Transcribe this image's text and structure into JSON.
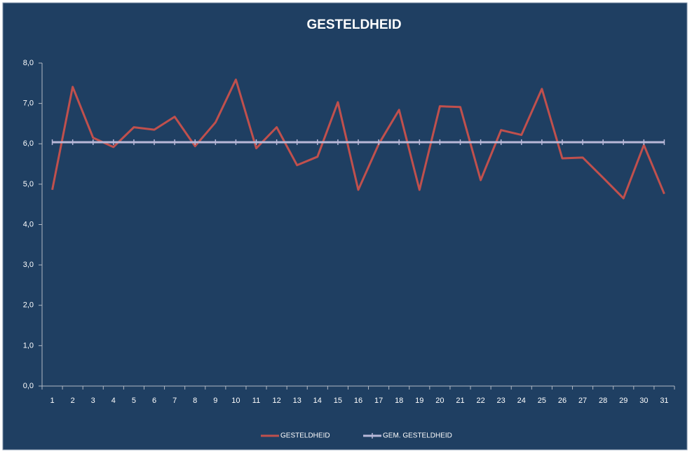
{
  "chart_data": {
    "type": "line",
    "title": "GESTELDHEID",
    "categories": [
      "1",
      "2",
      "3",
      "4",
      "5",
      "6",
      "7",
      "8",
      "9",
      "10",
      "11",
      "12",
      "13",
      "14",
      "15",
      "16",
      "17",
      "18",
      "19",
      "20",
      "21",
      "22",
      "23",
      "24",
      "25",
      "26",
      "27",
      "28",
      "29",
      "30",
      "31"
    ],
    "series": [
      {
        "name": "GESTELDHEID",
        "color": "#c0504d",
        "values": [
          4.86,
          7.41,
          6.15,
          5.92,
          6.41,
          6.35,
          6.67,
          5.94,
          6.53,
          7.59,
          5.89,
          6.41,
          5.47,
          5.68,
          7.03,
          4.86,
          5.99,
          6.84,
          4.86,
          6.93,
          6.91,
          5.1,
          6.34,
          6.22,
          7.36,
          5.64,
          5.66,
          5.16,
          4.65,
          5.97,
          4.76
        ]
      },
      {
        "name": "GEM. GESTELDHEID",
        "color": "#b8b8d8",
        "values": [
          6.04,
          6.04,
          6.04,
          6.04,
          6.04,
          6.04,
          6.04,
          6.04,
          6.04,
          6.04,
          6.04,
          6.04,
          6.04,
          6.04,
          6.04,
          6.04,
          6.04,
          6.04,
          6.04,
          6.04,
          6.04,
          6.04,
          6.04,
          6.04,
          6.04,
          6.04,
          6.04,
          6.04,
          6.04,
          6.04,
          6.04
        ]
      }
    ],
    "ylim": [
      0,
      8
    ],
    "yticks": [
      {
        "value": 0,
        "label": "0,0"
      },
      {
        "value": 1,
        "label": "1,0"
      },
      {
        "value": 2,
        "label": "2,0"
      },
      {
        "value": 3,
        "label": "3,0"
      },
      {
        "value": 4,
        "label": "4,0"
      },
      {
        "value": 5,
        "label": "5,0"
      },
      {
        "value": 6,
        "label": "6,0"
      },
      {
        "value": 7,
        "label": "7,0"
      },
      {
        "value": 8,
        "label": "8,0"
      }
    ],
    "grid": false,
    "legend": "bottom"
  }
}
